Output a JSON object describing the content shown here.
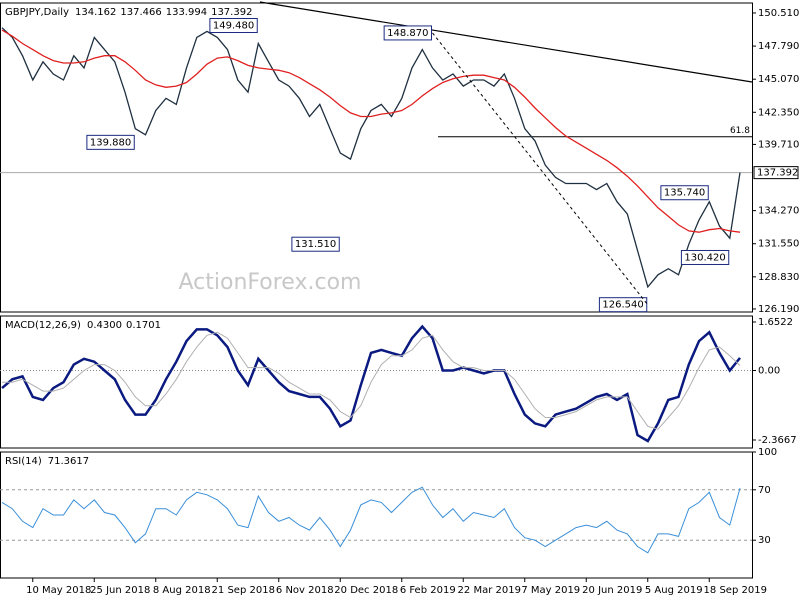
{
  "chart_data": [
    {
      "type": "line",
      "title": "GBPJPY,Daily",
      "ohlc": [
        134.162,
        137.466,
        133.994,
        137.392
      ],
      "watermark": "ActionForex.com",
      "ylim": [
        125.94,
        151.33
      ],
      "yticks": [
        {
          "value": 150.51,
          "label": "150.510"
        },
        {
          "value": 147.79,
          "label": "147.790"
        },
        {
          "value": 145.07,
          "label": "145.070"
        },
        {
          "value": 142.35,
          "label": "142.350"
        },
        {
          "value": 139.71,
          "label": "139.710"
        },
        {
          "value": 134.27,
          "label": "134.270"
        },
        {
          "value": 131.55,
          "label": "131.550"
        },
        {
          "value": 128.83,
          "label": "128.830"
        },
        {
          "value": 126.19,
          "label": "126.190"
        }
      ],
      "last_value": 137.392,
      "fib_level": {
        "value": 140.34,
        "label": "61.8"
      },
      "annotations": [
        {
          "index": 25,
          "value": 149.48,
          "label": "149.480"
        },
        {
          "index": 13,
          "value": 139.88,
          "label": "139.880"
        },
        {
          "index": 33,
          "value": 131.51,
          "label": "131.510"
        },
        {
          "index": 42,
          "value": 148.87,
          "label": "148.870"
        },
        {
          "index": 69,
          "value": 135.74,
          "label": "135.740"
        },
        {
          "index": 71,
          "value": 130.42,
          "label": "130.420"
        },
        {
          "index": 63,
          "value": 126.54,
          "label": "126.540"
        }
      ],
      "series": [
        {
          "color": "#1f3040",
          "values": [
            149.3,
            148.5,
            147,
            145,
            146.5,
            145.5,
            145,
            147,
            146,
            148.5,
            147.5,
            146.5,
            144,
            141,
            140.5,
            142.5,
            143.5,
            143,
            146,
            148.5,
            149,
            148.5,
            147.5,
            145,
            144,
            148,
            146.5,
            145,
            144.5,
            143.5,
            142,
            143,
            141,
            139,
            138.5,
            141,
            142.5,
            143,
            142,
            143.5,
            146,
            147.5,
            146,
            145,
            145.5,
            144.5,
            145,
            145,
            144.5,
            145.5,
            143.5,
            141,
            140,
            138,
            137,
            136.5,
            136.5,
            136.5,
            136,
            136.5,
            135,
            134,
            131,
            128,
            129,
            129.5,
            129,
            131.5,
            133.5,
            135,
            133,
            132,
            137.392
          ]
        },
        {
          "color": "#e02020",
          "values": [
            149.1,
            148.6,
            148.0,
            147.5,
            147.0,
            146.6,
            146.4,
            146.4,
            146.5,
            146.8,
            147.0,
            147.0,
            146.5,
            145.8,
            145.0,
            144.6,
            144.4,
            144.5,
            144.8,
            145.5,
            146.3,
            146.8,
            146.9,
            146.6,
            146.2,
            146.0,
            145.9,
            145.8,
            145.6,
            145.2,
            144.7,
            144.2,
            143.6,
            142.9,
            142.3,
            142.0,
            142.0,
            142.2,
            142.3,
            142.5,
            143.0,
            143.7,
            144.3,
            144.8,
            145.1,
            145.3,
            145.4,
            145.4,
            145.2,
            145.0,
            144.4,
            143.6,
            142.7,
            141.9,
            141.1,
            140.4,
            139.9,
            139.4,
            138.9,
            138.4,
            137.8,
            137.1,
            136.3,
            135.4,
            134.5,
            133.8,
            133.1,
            132.6,
            132.5,
            132.7,
            132.8,
            132.6,
            132.5
          ]
        }
      ]
    },
    {
      "type": "line",
      "title": "MACD(12,26,9)",
      "readout": [
        {
          "value": 0.43,
          "label": "0.4300"
        },
        0.1701
      ],
      "ylim": [
        -2.639,
        1.856
      ],
      "yticks": [
        1.6522,
        {
          "value": 0,
          "label": "0.00"
        },
        -2.3667
      ],
      "series": [
        {
          "color": "#0a1a80",
          "width": 2.5,
          "values": [
            -0.6,
            -0.3,
            -0.2,
            -0.9,
            -1.0,
            -0.6,
            -0.4,
            0.2,
            0.4,
            0.3,
            0.0,
            -0.3,
            -1.0,
            -1.5,
            -1.5,
            -1.0,
            -0.3,
            0.3,
            1.0,
            1.4,
            1.4,
            1.2,
            0.8,
            0.0,
            -0.5,
            0.4,
            0.0,
            -0.4,
            -0.7,
            -0.8,
            -0.9,
            -0.9,
            -1.3,
            -1.9,
            -1.7,
            -0.5,
            0.6,
            0.7,
            0.6,
            0.5,
            1.1,
            1.5,
            1.1,
            0.0,
            0.0,
            0.1,
            0.0,
            -0.1,
            0.0,
            0.0,
            -0.8,
            -1.5,
            -1.8,
            -1.9,
            -1.5,
            -1.4,
            -1.3,
            -1.1,
            -0.9,
            -0.8,
            -1.0,
            -0.8,
            -2.2,
            -2.4,
            -1.8,
            -1.0,
            -0.9,
            0.2,
            1.0,
            1.3,
            0.6,
            0.0,
            0.43
          ]
        },
        {
          "color": "#b0b0b0",
          "width": 1,
          "values": [
            -0.4,
            -0.4,
            -0.3,
            -0.5,
            -0.7,
            -0.7,
            -0.6,
            -0.3,
            0.0,
            0.2,
            0.2,
            0.0,
            -0.4,
            -0.9,
            -1.2,
            -1.2,
            -0.8,
            -0.3,
            0.3,
            0.8,
            1.2,
            1.3,
            1.1,
            0.6,
            0.1,
            0.1,
            0.1,
            -0.1,
            -0.4,
            -0.6,
            -0.8,
            -0.8,
            -1.0,
            -1.4,
            -1.6,
            -1.2,
            -0.4,
            0.2,
            0.5,
            0.5,
            0.7,
            1.1,
            1.2,
            0.7,
            0.3,
            0.1,
            0.1,
            0.0,
            0.0,
            0.0,
            -0.3,
            -0.8,
            -1.3,
            -1.6,
            -1.6,
            -1.5,
            -1.4,
            -1.2,
            -1.0,
            -0.9,
            -0.9,
            -0.9,
            -1.4,
            -1.9,
            -2.0,
            -1.6,
            -1.2,
            -0.6,
            0.1,
            0.7,
            0.8,
            0.5,
            0.1701
          ]
        }
      ]
    },
    {
      "type": "line",
      "title": "RSI(14)",
      "readout": [
        71.3617
      ],
      "ylim": [
        0,
        100
      ],
      "yticks": [
        30,
        70,
        100
      ],
      "levels": [
        30,
        70
      ],
      "categories": [
        null,
        null,
        null,
        "10 May 2018",
        null,
        null,
        null,
        null,
        null,
        "25 Jun 2018",
        null,
        null,
        null,
        null,
        null,
        "8 Aug 2018",
        null,
        null,
        null,
        null,
        null,
        "21 Sep 2018",
        null,
        null,
        null,
        null,
        null,
        "6 Nov 2018",
        null,
        null,
        null,
        null,
        null,
        "20 Dec 2018",
        null,
        null,
        null,
        null,
        null,
        "6 Feb 2019",
        null,
        null,
        null,
        null,
        null,
        "22 Mar 2019",
        null,
        null,
        null,
        null,
        null,
        "7 May 2019",
        null,
        null,
        null,
        null,
        null,
        "20 Jun 2019",
        null,
        null,
        null,
        null,
        null,
        "5 Aug 2019",
        null,
        null,
        null,
        null,
        null,
        "18 Sep 2019",
        null,
        null,
        null
      ],
      "series": [
        {
          "color": "#3a8fd8",
          "width": 1,
          "values": [
            60,
            55,
            45,
            40,
            55,
            50,
            50,
            62,
            55,
            62,
            52,
            50,
            40,
            28,
            35,
            55,
            55,
            50,
            62,
            68,
            66,
            62,
            55,
            42,
            40,
            65,
            52,
            45,
            48,
            42,
            38,
            48,
            38,
            25,
            38,
            58,
            62,
            60,
            52,
            60,
            68,
            72,
            58,
            48,
            55,
            45,
            52,
            50,
            48,
            55,
            40,
            32,
            30,
            25,
            30,
            35,
            40,
            42,
            40,
            45,
            38,
            35,
            25,
            20,
            35,
            35,
            33,
            55,
            60,
            68,
            48,
            42,
            71.3617
          ]
        }
      ]
    }
  ]
}
